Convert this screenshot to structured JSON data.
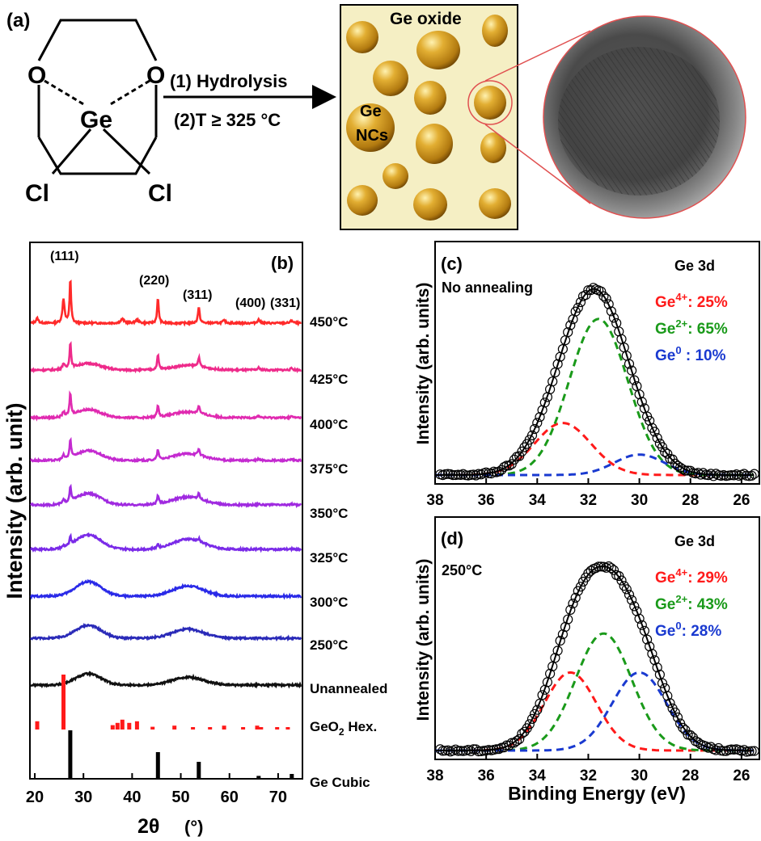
{
  "panel_a": {
    "label": "(a)",
    "molecule": {
      "atom_o_left": "O",
      "atom_o_right": "O",
      "atom_ge": "Ge",
      "atom_cl_left": "Cl",
      "atom_cl_right": "Cl"
    },
    "reaction": {
      "step1": "(1) Hydrolysis",
      "step2": "(2)T ≥ 325 °C"
    },
    "schematic": {
      "matrix_label": "Ge oxide",
      "nc_label_1": "Ge",
      "nc_label_2": "NCs"
    },
    "colors": {
      "matrix_fill": "#f5efc4",
      "sphere": "#d9a42a",
      "sphere_dark": "#8a5a08",
      "zoom_lines": "#e05050"
    }
  },
  "panel_b": {
    "label": "(b)",
    "xlabel_main": "2θ",
    "xlabel_unit": "(°)",
    "ylabel": "Intensity (arb. unit)",
    "peak_labels": [
      "(111)",
      "(220)",
      "(311)",
      "(400)",
      "(331)"
    ],
    "x_ticks": [
      "20",
      "30",
      "40",
      "50",
      "60",
      "70"
    ],
    "traces": [
      {
        "label": "450°C",
        "color": "#ff2a2a"
      },
      {
        "label": "425°C",
        "color": "#ee2a8a"
      },
      {
        "label": "400°C",
        "color": "#e02ab0"
      },
      {
        "label": "375°C",
        "color": "#c42ad0"
      },
      {
        "label": "350°C",
        "color": "#a02ae0"
      },
      {
        "label": "325°C",
        "color": "#7a2ae8"
      },
      {
        "label": "300°C",
        "color": "#2a2ae8"
      },
      {
        "label": "250°C",
        "color": "#2a2ab8"
      },
      {
        "label": "Unannealed",
        "color": "#111111"
      }
    ],
    "ref_geo2": {
      "label_main": "GeO",
      "label_sub": "2",
      "label_rest": " Hex.",
      "color": "#ff1a1a"
    },
    "ref_ge": {
      "label": "Ge Cubic",
      "color": "#000000"
    }
  },
  "panel_c": {
    "label": "(c)",
    "title": "Ge 3d",
    "condition": "No annealing",
    "ylabel": "Intensity (arb. units)",
    "x_ticks": [
      "38",
      "36",
      "34",
      "32",
      "30",
      "28",
      "26"
    ],
    "legend": [
      {
        "base": "Ge",
        "sup": "4+",
        "value": ": 25%",
        "color": "#ff1a1a"
      },
      {
        "base": "Ge",
        "sup": "2+",
        "value": ": 65%",
        "color": "#1a9a1a"
      },
      {
        "base": "Ge",
        "sup": "0",
        "value": " : 10%",
        "color": "#1a3ad0"
      }
    ]
  },
  "panel_d": {
    "label": "(d)",
    "title": "Ge 3d",
    "condition": "250°C",
    "ylabel": "Intensity (arb. units)",
    "xlabel": "Binding Energy (eV)",
    "x_ticks": [
      "38",
      "36",
      "34",
      "32",
      "30",
      "28",
      "26"
    ],
    "legend": [
      {
        "base": "Ge",
        "sup": "4+",
        "value": ": 29%",
        "color": "#ff1a1a"
      },
      {
        "base": "Ge",
        "sup": "2+",
        "value": ": 43%",
        "color": "#1a9a1a"
      },
      {
        "base": "Ge",
        "sup": "0",
        "value": ": 28%",
        "color": "#1a3ad0"
      }
    ]
  },
  "chart_data": [
    {
      "type": "line",
      "panel": "(b)",
      "xlabel": "2θ (°)",
      "ylabel": "Intensity (arb. unit)",
      "xlim": [
        19,
        75
      ],
      "peak_positions": {
        "(111)": 27.3,
        "(220)": 45.3,
        "(311)": 53.7,
        "(400)": 66.0,
        "(331)": 72.8
      },
      "series": [
        {
          "name": "450°C",
          "description_peaks": [
            25.9,
            27.3,
            45.3,
            53.7,
            66.0,
            72.8
          ]
        },
        {
          "name": "425°C",
          "description_peaks": [
            25.9,
            27.3,
            45.3,
            53.7,
            66.0,
            72.8
          ]
        },
        {
          "name": "400°C",
          "description_peaks": [
            25.9,
            27.3,
            45.3,
            53.7
          ]
        },
        {
          "name": "375°C",
          "description_peaks": [
            25.9,
            27.3,
            45.3,
            53.7
          ]
        },
        {
          "name": "350°C",
          "description_peaks": [
            25.9,
            27.3,
            45.3,
            53.7
          ]
        },
        {
          "name": "325°C",
          "description_peaks": [
            25.9,
            27.3,
            45.3,
            53.7
          ]
        },
        {
          "name": "300°C",
          "broad_humps": [
            31,
            51.5
          ]
        },
        {
          "name": "250°C",
          "broad_humps": [
            31,
            51.5
          ]
        },
        {
          "name": "Unannealed",
          "broad_humps": [
            31,
            51.5
          ]
        }
      ],
      "reference_GeO2_hex": {
        "positions": [
          20.5,
          25.9,
          36.0,
          37.0,
          38.0,
          39.4,
          41.0,
          44.2,
          48.7,
          52.5,
          56.0,
          58.9,
          62.8,
          65.7,
          66.5,
          69.8,
          72.0
        ],
        "heights": [
          0.15,
          1.0,
          0.08,
          0.12,
          0.18,
          0.12,
          0.15,
          0.05,
          0.07,
          0.03,
          0.03,
          0.07,
          0.03,
          0.07,
          0.04,
          0.03,
          0.02
        ]
      },
      "reference_Ge_cubic": {
        "positions": [
          27.3,
          45.3,
          53.7,
          66.0,
          72.8
        ],
        "heights": [
          1.0,
          0.55,
          0.35,
          0.06,
          0.1
        ]
      }
    },
    {
      "type": "line",
      "panel": "(c)",
      "title": "Ge 3d",
      "xlabel": "Binding Energy (eV)",
      "ylabel": "Intensity (arb. units)",
      "xlim": [
        38,
        25.3
      ],
      "components": [
        {
          "name": "Ge4+",
          "center": 33.0,
          "height": 0.28,
          "fwhm": 2.6,
          "fraction": 25
        },
        {
          "name": "Ge2+",
          "center": 31.6,
          "height": 0.84,
          "fwhm": 2.7,
          "fraction": 65
        },
        {
          "name": "Ge0",
          "center": 30.0,
          "height": 0.11,
          "fwhm": 2.3,
          "fraction": 10
        }
      ],
      "envelope_peak": 31.8
    },
    {
      "type": "line",
      "panel": "(d)",
      "title": "Ge 3d",
      "xlabel": "Binding Energy (eV)",
      "ylabel": "Intensity (arb. units)",
      "xlim": [
        38,
        25.3
      ],
      "components": [
        {
          "name": "Ge4+",
          "center": 32.7,
          "height": 0.42,
          "fwhm": 2.4,
          "fraction": 29
        },
        {
          "name": "Ge2+",
          "center": 31.4,
          "height": 0.63,
          "fwhm": 2.6,
          "fraction": 43
        },
        {
          "name": "Ge0",
          "center": 30.0,
          "height": 0.42,
          "fwhm": 2.5,
          "fraction": 28
        }
      ],
      "envelope_peak": 31.5
    }
  ]
}
